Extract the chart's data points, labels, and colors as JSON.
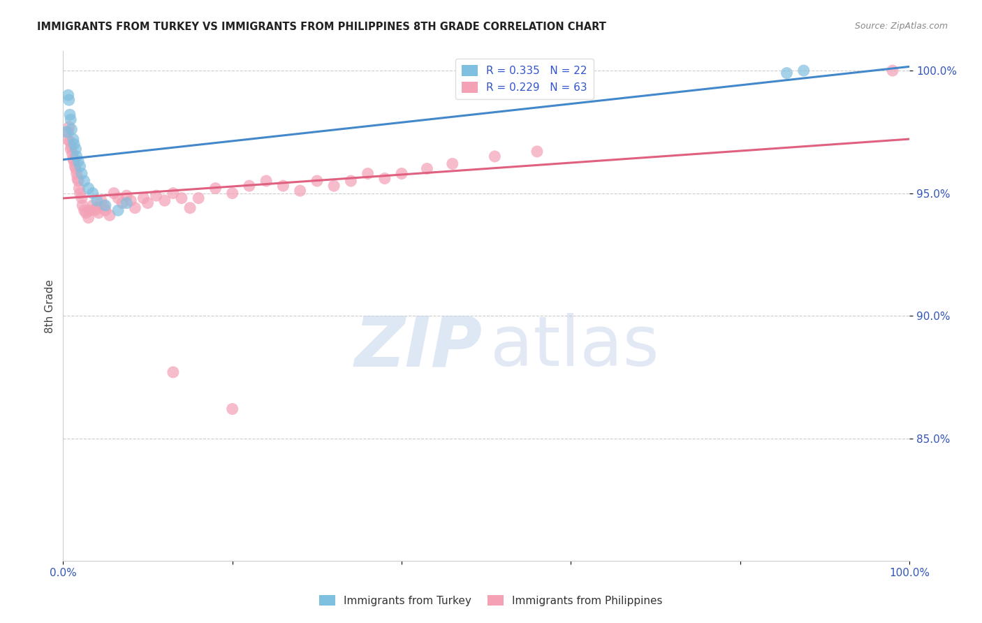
{
  "title": "IMMIGRANTS FROM TURKEY VS IMMIGRANTS FROM PHILIPPINES 8TH GRADE CORRELATION CHART",
  "source": "Source: ZipAtlas.com",
  "ylabel": "8th Grade",
  "turkey_color": "#7fbfdf",
  "philippines_color": "#f4a0b5",
  "turkey_line_color": "#4488cc",
  "philippines_line_color": "#e06080",
  "turkey_R": 0.335,
  "turkey_N": 22,
  "philippines_R": 0.229,
  "philippines_N": 63,
  "legend_label_turkey": "Immigrants from Turkey",
  "legend_label_philippines": "Immigrants from Philippines",
  "turkey_x": [
    0.004,
    0.006,
    0.007,
    0.008,
    0.009,
    0.01,
    0.012,
    0.013,
    0.015,
    0.016,
    0.018,
    0.02,
    0.022,
    0.025,
    0.03,
    0.035,
    0.04,
    0.05,
    0.065,
    0.075,
    0.855,
    0.875
  ],
  "turkey_y": [
    0.975,
    0.99,
    0.988,
    0.982,
    0.98,
    0.976,
    0.972,
    0.97,
    0.968,
    0.965,
    0.963,
    0.961,
    0.958,
    0.955,
    0.952,
    0.95,
    0.947,
    0.945,
    0.943,
    0.946,
    0.999,
    1.0
  ],
  "philippines_x": [
    0.005,
    0.006,
    0.007,
    0.008,
    0.009,
    0.01,
    0.011,
    0.012,
    0.013,
    0.014,
    0.015,
    0.016,
    0.017,
    0.018,
    0.019,
    0.02,
    0.022,
    0.023,
    0.025,
    0.027,
    0.03,
    0.032,
    0.035,
    0.038,
    0.04,
    0.042,
    0.045,
    0.048,
    0.05,
    0.055,
    0.06,
    0.065,
    0.07,
    0.075,
    0.08,
    0.085,
    0.095,
    0.1,
    0.11,
    0.12,
    0.13,
    0.14,
    0.15,
    0.16,
    0.18,
    0.2,
    0.22,
    0.24,
    0.26,
    0.28,
    0.3,
    0.32,
    0.34,
    0.36,
    0.38,
    0.4,
    0.43,
    0.46,
    0.51,
    0.56,
    0.13,
    0.2,
    0.98
  ],
  "philippines_y": [
    0.972,
    0.975,
    0.977,
    0.971,
    0.968,
    0.969,
    0.966,
    0.964,
    0.963,
    0.961,
    0.96,
    0.958,
    0.956,
    0.955,
    0.952,
    0.95,
    0.948,
    0.945,
    0.943,
    0.942,
    0.94,
    0.943,
    0.945,
    0.943,
    0.944,
    0.942,
    0.947,
    0.945,
    0.943,
    0.941,
    0.95,
    0.948,
    0.946,
    0.949,
    0.947,
    0.944,
    0.948,
    0.946,
    0.949,
    0.947,
    0.95,
    0.948,
    0.944,
    0.948,
    0.952,
    0.95,
    0.953,
    0.955,
    0.953,
    0.951,
    0.955,
    0.953,
    0.955,
    0.958,
    0.956,
    0.958,
    0.96,
    0.962,
    0.965,
    0.967,
    0.877,
    0.862,
    1.0
  ],
  "xlim": [
    0.0,
    1.0
  ],
  "ylim": [
    0.8,
    1.008
  ],
  "yticks": [
    0.85,
    0.9,
    0.95,
    1.0
  ],
  "ytick_labels": [
    "85.0%",
    "90.0%",
    "95.0%",
    "100.0%"
  ],
  "xtick_labels_show": [
    "0.0%",
    "100.0%"
  ]
}
